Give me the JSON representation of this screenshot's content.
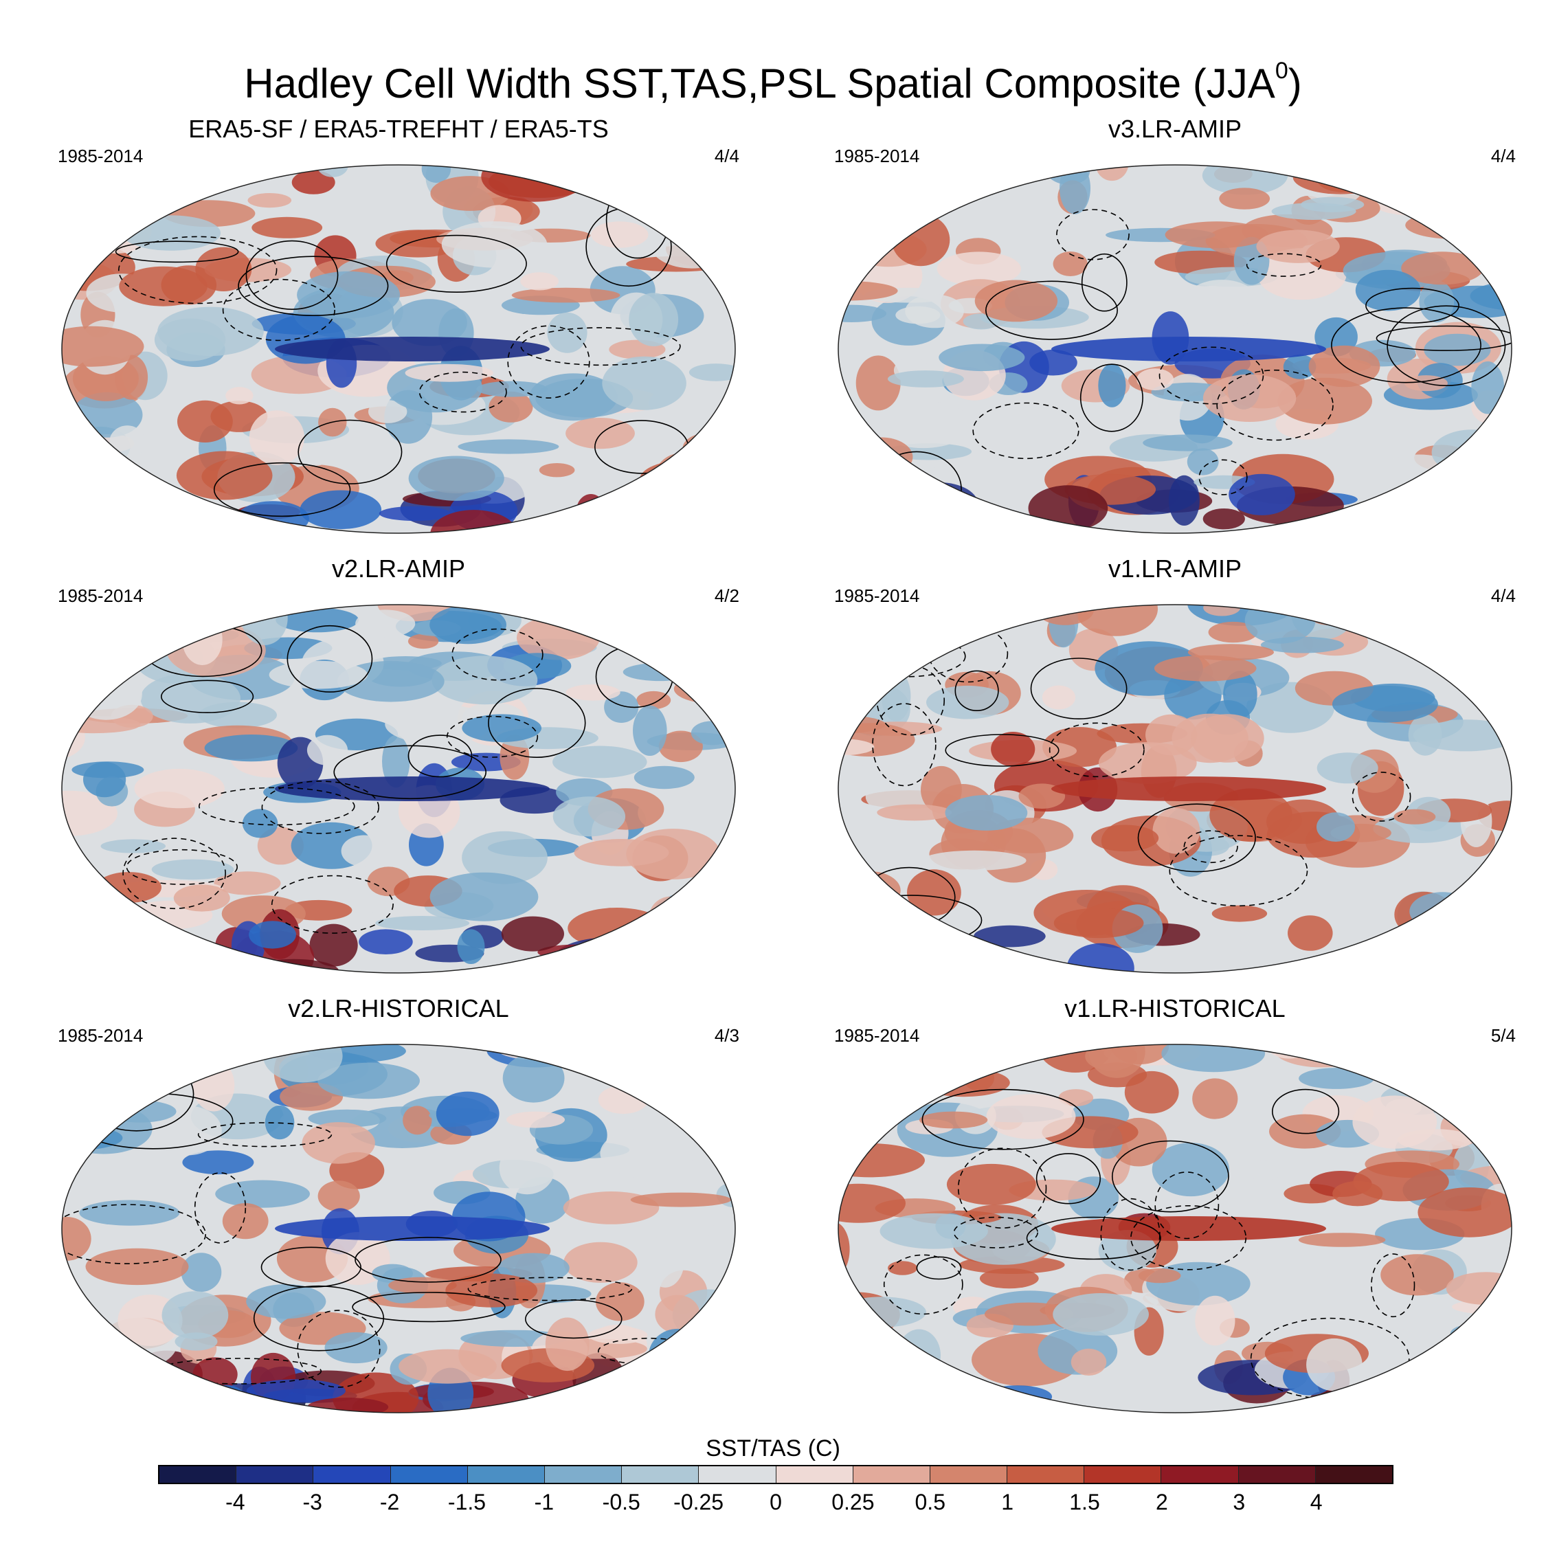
{
  "figure": {
    "title": "Hadley Cell Width SST,TAS,PSL Spatial Composite (JJA",
    "title_sup": "0",
    "title_close": ")"
  },
  "panels": [
    {
      "title": "ERA5-SF / ERA5-TREFHT / ERA5-TS",
      "period": "1985-2014",
      "ratio": "4/4",
      "pattern": "warm_north_cold_equator"
    },
    {
      "title": "v3.LR-AMIP",
      "period": "1985-2014",
      "ratio": "4/4",
      "pattern": "mixed_cool"
    },
    {
      "title": "v2.LR-AMIP",
      "period": "1985-2014",
      "ratio": "4/2",
      "pattern": "cool_pacific"
    },
    {
      "title": "v1.LR-AMIP",
      "period": "1985-2014",
      "ratio": "4/4",
      "pattern": "warm_equator"
    },
    {
      "title": "v2.LR-HISTORICAL",
      "period": "1985-2014",
      "ratio": "4/3",
      "pattern": "cool_north"
    },
    {
      "title": "v1.LR-HISTORICAL",
      "period": "1985-2014",
      "ratio": "5/4",
      "pattern": "warm_mixed"
    }
  ],
  "colorbar": {
    "title": "SST/TAS (C)",
    "labels": [
      "-4",
      "-3",
      "-2",
      "-1.5",
      "-1",
      "-0.5",
      "-0.25",
      "0",
      "0.25",
      "0.5",
      "1",
      "1.5",
      "2",
      "3",
      "4"
    ],
    "colors": [
      "#141a4a",
      "#1e2f86",
      "#2447b8",
      "#2a6cc4",
      "#4b8fc4",
      "#7eadcc",
      "#aec8d6",
      "#dcdfe2",
      "#efdad6",
      "#e2aa9b",
      "#d4856d",
      "#c75d43",
      "#b33528",
      "#8f1a24",
      "#661420",
      "#431016"
    ]
  }
}
